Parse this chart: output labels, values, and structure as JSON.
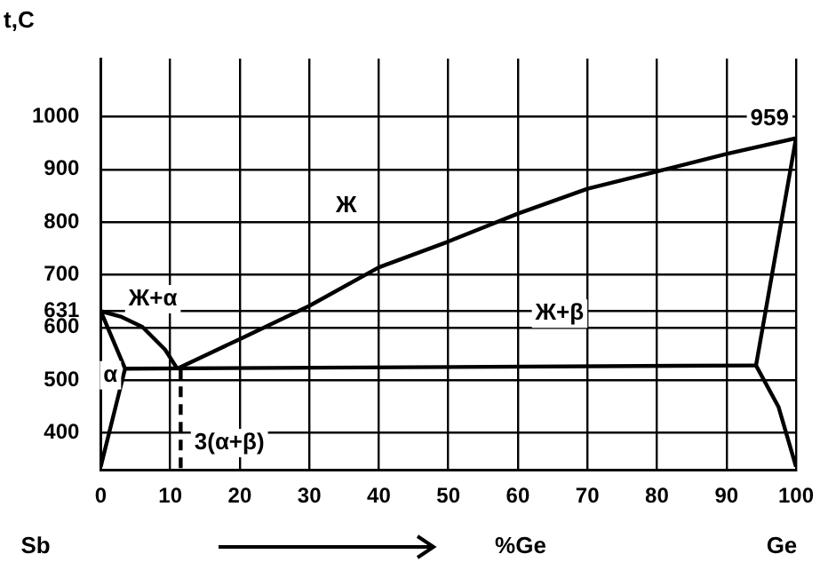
{
  "chart_data": {
    "type": "line",
    "ylabel": "t,C",
    "xlabel": "%Ge",
    "xlim": [
      0,
      100
    ],
    "xticks": [
      0,
      10,
      20,
      30,
      40,
      50,
      60,
      70,
      80,
      90,
      100
    ],
    "ylim": [
      330,
      1110
    ],
    "yticks": [
      400,
      500,
      600,
      631,
      700,
      800,
      900,
      1000
    ],
    "grid": true,
    "legend": false,
    "marker": "none",
    "series": [
      {
        "color": "#000000",
        "x": [
          11,
          20,
          30,
          40,
          50,
          60,
          70,
          80,
          90,
          100
        ],
        "values": [
          522,
          578,
          641,
          714,
          763,
          816,
          863,
          896,
          929,
          959
        ],
        "value_labels": [
          null,
          null,
          null,
          null,
          null,
          null,
          null,
          null,
          null,
          "959"
        ]
      },
      {
        "color": "#000000",
        "x": [
          0,
          3,
          6,
          9.25,
          11
        ],
        "values": [
          631,
          620,
          601,
          558,
          522
        ]
      },
      {
        "color": "#000000",
        "x": [
          0,
          3.5,
          0
        ],
        "values": [
          631,
          522,
          336
        ]
      },
      {
        "color": "#000000",
        "x": [
          3.5,
          94.25
        ],
        "values": [
          522,
          528
        ]
      },
      {
        "color": "#000000",
        "x": [
          100,
          94.25,
          97.5,
          100
        ],
        "values": [
          959,
          528,
          449,
          336
        ]
      },
      {
        "color": "#000000",
        "line_style": "dashed",
        "x": [
          11.5,
          11.5
        ],
        "values": [
          522,
          330
        ]
      }
    ],
    "annotations": [
      "Ж",
      "Ж+α",
      "Ж+β",
      "α",
      "3(α+β)",
      "Sb",
      "Ge"
    ]
  }
}
